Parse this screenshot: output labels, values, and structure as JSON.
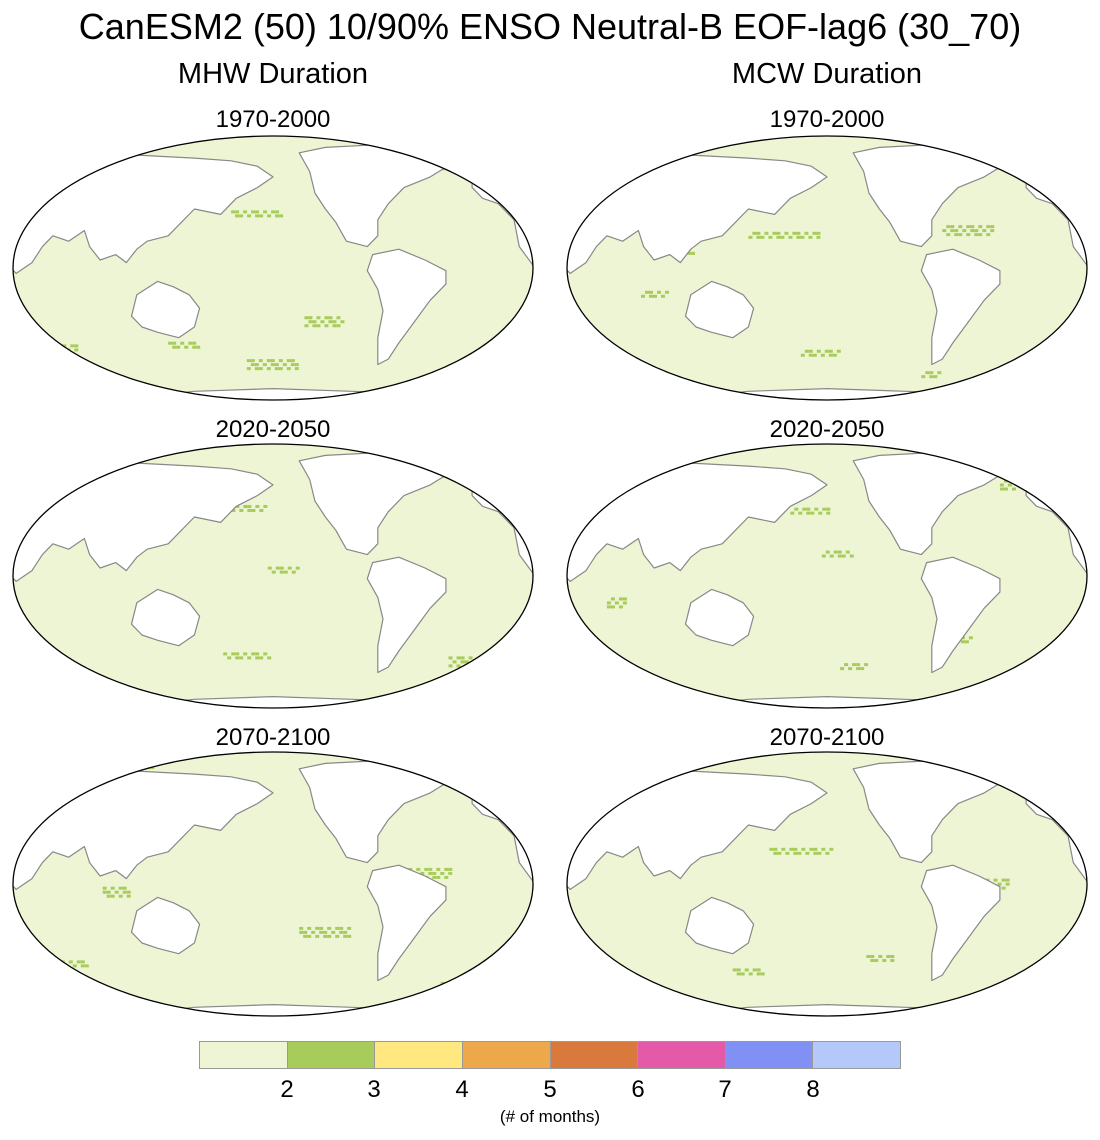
{
  "title": "CanESM2 (50) 10/90% ENSO Neutral-B EOF-lag6 (30_70)",
  "columns": [
    {
      "title": "MHW Duration"
    },
    {
      "title": "MCW Duration"
    }
  ],
  "periods": [
    "1970-2000",
    "2020-2050",
    "2070-2100"
  ],
  "colors": {
    "ocean": "#eef5d4",
    "land": "#ffffff",
    "coast": "#888888",
    "outline": "#000000",
    "level_2_3": "#a8cc5c"
  },
  "colorbar": {
    "colors": [
      "#eef5d4",
      "#a8cc5c",
      "#ffe880",
      "#eda84c",
      "#d97a3c",
      "#e45aa8",
      "#8090f4",
      "#b4c8fa"
    ],
    "tick_labels": [
      "2",
      "3",
      "4",
      "5",
      "6",
      "7",
      "8"
    ],
    "units": "(# of months)"
  }
}
